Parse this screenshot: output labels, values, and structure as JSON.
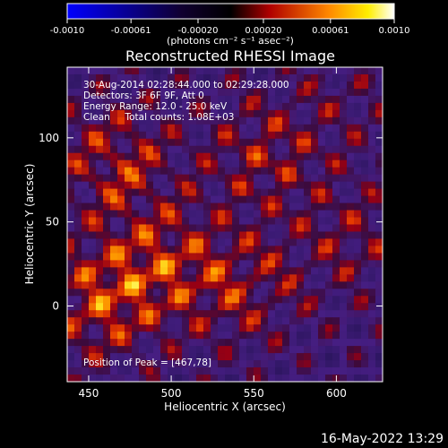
{
  "chart_data": {
    "type": "heatmap",
    "title": "Reconstructed RHESSI Image",
    "xlabel": "Heliocentric X (arcsec)",
    "ylabel": "Heliocentric Y (arcsec)",
    "xlim": [
      437,
      628
    ],
    "ylim": [
      -45,
      142
    ],
    "x_ticks": [
      "450",
      "500",
      "550",
      "600"
    ],
    "y_ticks": [
      "0",
      "50",
      "100"
    ],
    "x_tick_values": [
      450,
      500,
      550,
      600
    ],
    "y_tick_values": [
      0,
      50,
      100
    ],
    "colorbar": {
      "ticks": [
        "-0.0010",
        "-0.00061",
        "-0.00020",
        "0.00020",
        "0.00061",
        "0.0010"
      ],
      "tick_values": [
        -0.001,
        -0.00061,
        -0.0002,
        0.0002,
        0.00061,
        0.001
      ],
      "range": [
        -0.001,
        0.001
      ],
      "units_label": "(photons cm⁻² s⁻¹ asec⁻²)"
    },
    "annotations": [
      "30-Aug-2014 02:28:44.000 to 02:29:28.000",
      "Detectors: 3F 6F 9F, Att 0",
      "Energy Range: 12.0 - 25.0 keV",
      "Clean     Total counts: 1.08E+03",
      "Position of Peak = [467,78]"
    ],
    "peak": {
      "x": 467,
      "y": 78
    },
    "grid": false,
    "colormap": [
      "#0000ff",
      "#000000",
      "#ff0000",
      "#ffff00",
      "#ffffff"
    ]
  },
  "footer": {
    "timestamp": "16-May-2022 13:29"
  }
}
